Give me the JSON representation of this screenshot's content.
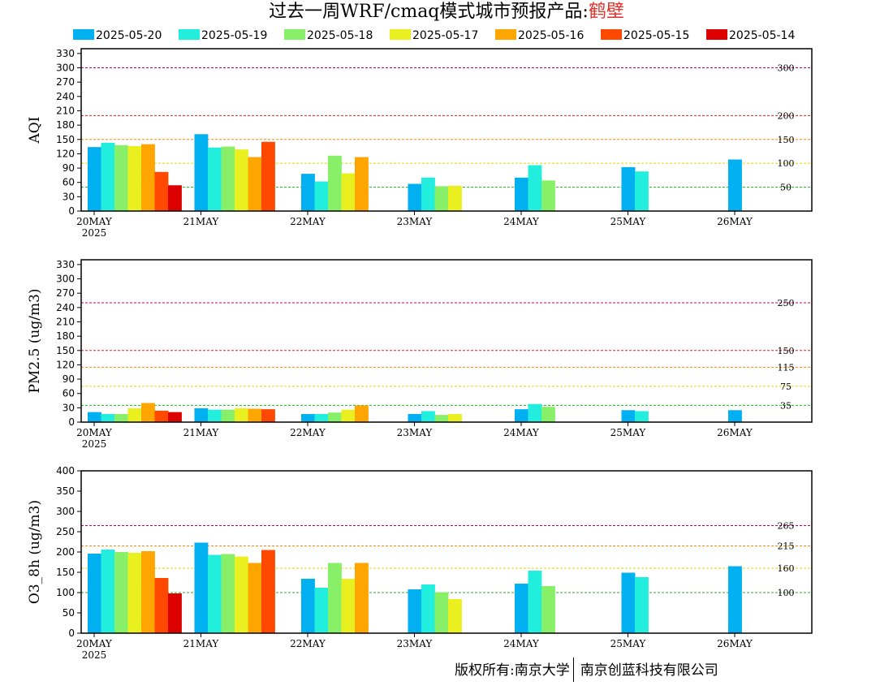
{
  "title": {
    "main": "过去一周WRF/cmaq模式城市预报产品:",
    "city": "鹤壁"
  },
  "copyright": {
    "left": "版权所有:南京大学",
    "right": "南京创蓝科技有限公司"
  },
  "chart_data": [
    {
      "type": "bar",
      "ylabel": "AQI",
      "ylim": [
        0,
        340
      ],
      "yticks": [
        0,
        30,
        60,
        90,
        120,
        150,
        180,
        210,
        240,
        270,
        300,
        330
      ],
      "categories": [
        "20MAY",
        "21MAY",
        "22MAY",
        "23MAY",
        "24MAY",
        "25MAY",
        "26MAY"
      ],
      "year_label": "2025",
      "series": [
        {
          "name": "2025-05-20",
          "color": "#00b0f0",
          "values": [
            134,
            161,
            78,
            57,
            70,
            92,
            108
          ]
        },
        {
          "name": "2025-05-19",
          "color": "#22eedd",
          "values": [
            143,
            133,
            62,
            70,
            96,
            83,
            null
          ]
        },
        {
          "name": "2025-05-18",
          "color": "#88f068",
          "values": [
            138,
            135,
            116,
            52,
            64,
            null,
            null
          ]
        },
        {
          "name": "2025-05-17",
          "color": "#eaf020",
          "values": [
            136,
            129,
            79,
            53,
            null,
            null,
            null
          ]
        },
        {
          "name": "2025-05-16",
          "color": "#ffa500",
          "values": [
            140,
            113,
            113,
            null,
            null,
            null,
            null
          ]
        },
        {
          "name": "2025-05-15",
          "color": "#ff4800",
          "values": [
            82,
            145,
            null,
            null,
            null,
            null,
            null
          ]
        },
        {
          "name": "2025-05-14",
          "color": "#dc0000",
          "values": [
            54,
            null,
            null,
            null,
            null,
            null,
            null
          ]
        }
      ],
      "thresholds": [
        {
          "value": 300,
          "label": "300",
          "color": "#c00060"
        },
        {
          "value": 200,
          "label": "200",
          "color": "#e02020"
        },
        {
          "value": 150,
          "label": "150",
          "color": "#ff8800"
        },
        {
          "value": 100,
          "label": "100",
          "color": "#e8d800"
        },
        {
          "value": 50,
          "label": "50",
          "color": "#20b020"
        }
      ]
    },
    {
      "type": "bar",
      "ylabel": "PM2.5 (ug/m3)",
      "ylim": [
        0,
        340
      ],
      "yticks": [
        0,
        30,
        60,
        90,
        120,
        150,
        180,
        210,
        240,
        270,
        300,
        330
      ],
      "categories": [
        "20MAY",
        "21MAY",
        "22MAY",
        "23MAY",
        "24MAY",
        "25MAY",
        "26MAY"
      ],
      "year_label": "2025",
      "series": [
        {
          "name": "2025-05-20",
          "color": "#00b0f0",
          "values": [
            21,
            29,
            17,
            17,
            27,
            25,
            25
          ]
        },
        {
          "name": "2025-05-19",
          "color": "#22eedd",
          "values": [
            17,
            26,
            17,
            23,
            38,
            23,
            null
          ]
        },
        {
          "name": "2025-05-18",
          "color": "#88f068",
          "values": [
            17,
            26,
            20,
            15,
            32,
            null,
            null
          ]
        },
        {
          "name": "2025-05-17",
          "color": "#eaf020",
          "values": [
            29,
            29,
            26,
            17,
            null,
            null,
            null
          ]
        },
        {
          "name": "2025-05-16",
          "color": "#ffa500",
          "values": [
            40,
            28,
            35,
            null,
            null,
            null,
            null
          ]
        },
        {
          "name": "2025-05-15",
          "color": "#ff4800",
          "values": [
            24,
            27,
            null,
            null,
            null,
            null,
            null
          ]
        },
        {
          "name": "2025-05-14",
          "color": "#dc0000",
          "values": [
            21,
            null,
            null,
            null,
            null,
            null,
            null
          ]
        }
      ],
      "thresholds": [
        {
          "value": 250,
          "label": "250",
          "color": "#c00060"
        },
        {
          "value": 150,
          "label": "150",
          "color": "#e02020"
        },
        {
          "value": 115,
          "label": "115",
          "color": "#ff8800"
        },
        {
          "value": 75,
          "label": "75",
          "color": "#e8d800"
        },
        {
          "value": 35,
          "label": "35",
          "color": "#20b020"
        }
      ]
    },
    {
      "type": "bar",
      "ylabel": "O3_8h (ug/m3)",
      "ylim": [
        0,
        400
      ],
      "yticks": [
        0,
        50,
        100,
        150,
        200,
        250,
        300,
        350,
        400
      ],
      "categories": [
        "20MAY",
        "21MAY",
        "22MAY",
        "23MAY",
        "24MAY",
        "25MAY",
        "26MAY"
      ],
      "year_label": "2025",
      "series": [
        {
          "name": "2025-05-20",
          "color": "#00b0f0",
          "values": [
            196,
            223,
            134,
            108,
            122,
            149,
            165
          ]
        },
        {
          "name": "2025-05-19",
          "color": "#22eedd",
          "values": [
            206,
            193,
            112,
            120,
            154,
            138,
            null
          ]
        },
        {
          "name": "2025-05-18",
          "color": "#88f068",
          "values": [
            200,
            195,
            173,
            101,
            116,
            null,
            null
          ]
        },
        {
          "name": "2025-05-17",
          "color": "#eaf020",
          "values": [
            198,
            189,
            134,
            84,
            null,
            null,
            null
          ]
        },
        {
          "name": "2025-05-16",
          "color": "#ffa500",
          "values": [
            202,
            173,
            173,
            null,
            null,
            null,
            null
          ]
        },
        {
          "name": "2025-05-15",
          "color": "#ff4800",
          "values": [
            136,
            205,
            null,
            null,
            null,
            null,
            null
          ]
        },
        {
          "name": "2025-05-14",
          "color": "#dc0000",
          "values": [
            98,
            null,
            null,
            null,
            null,
            null,
            null
          ]
        }
      ],
      "thresholds": [
        {
          "value": 265,
          "label": "265",
          "color": "#c00060"
        },
        {
          "value": 215,
          "label": "215",
          "color": "#ff8800"
        },
        {
          "value": 160,
          "label": "160",
          "color": "#e8d800"
        },
        {
          "value": 100,
          "label": "100",
          "color": "#20b020"
        }
      ]
    }
  ]
}
